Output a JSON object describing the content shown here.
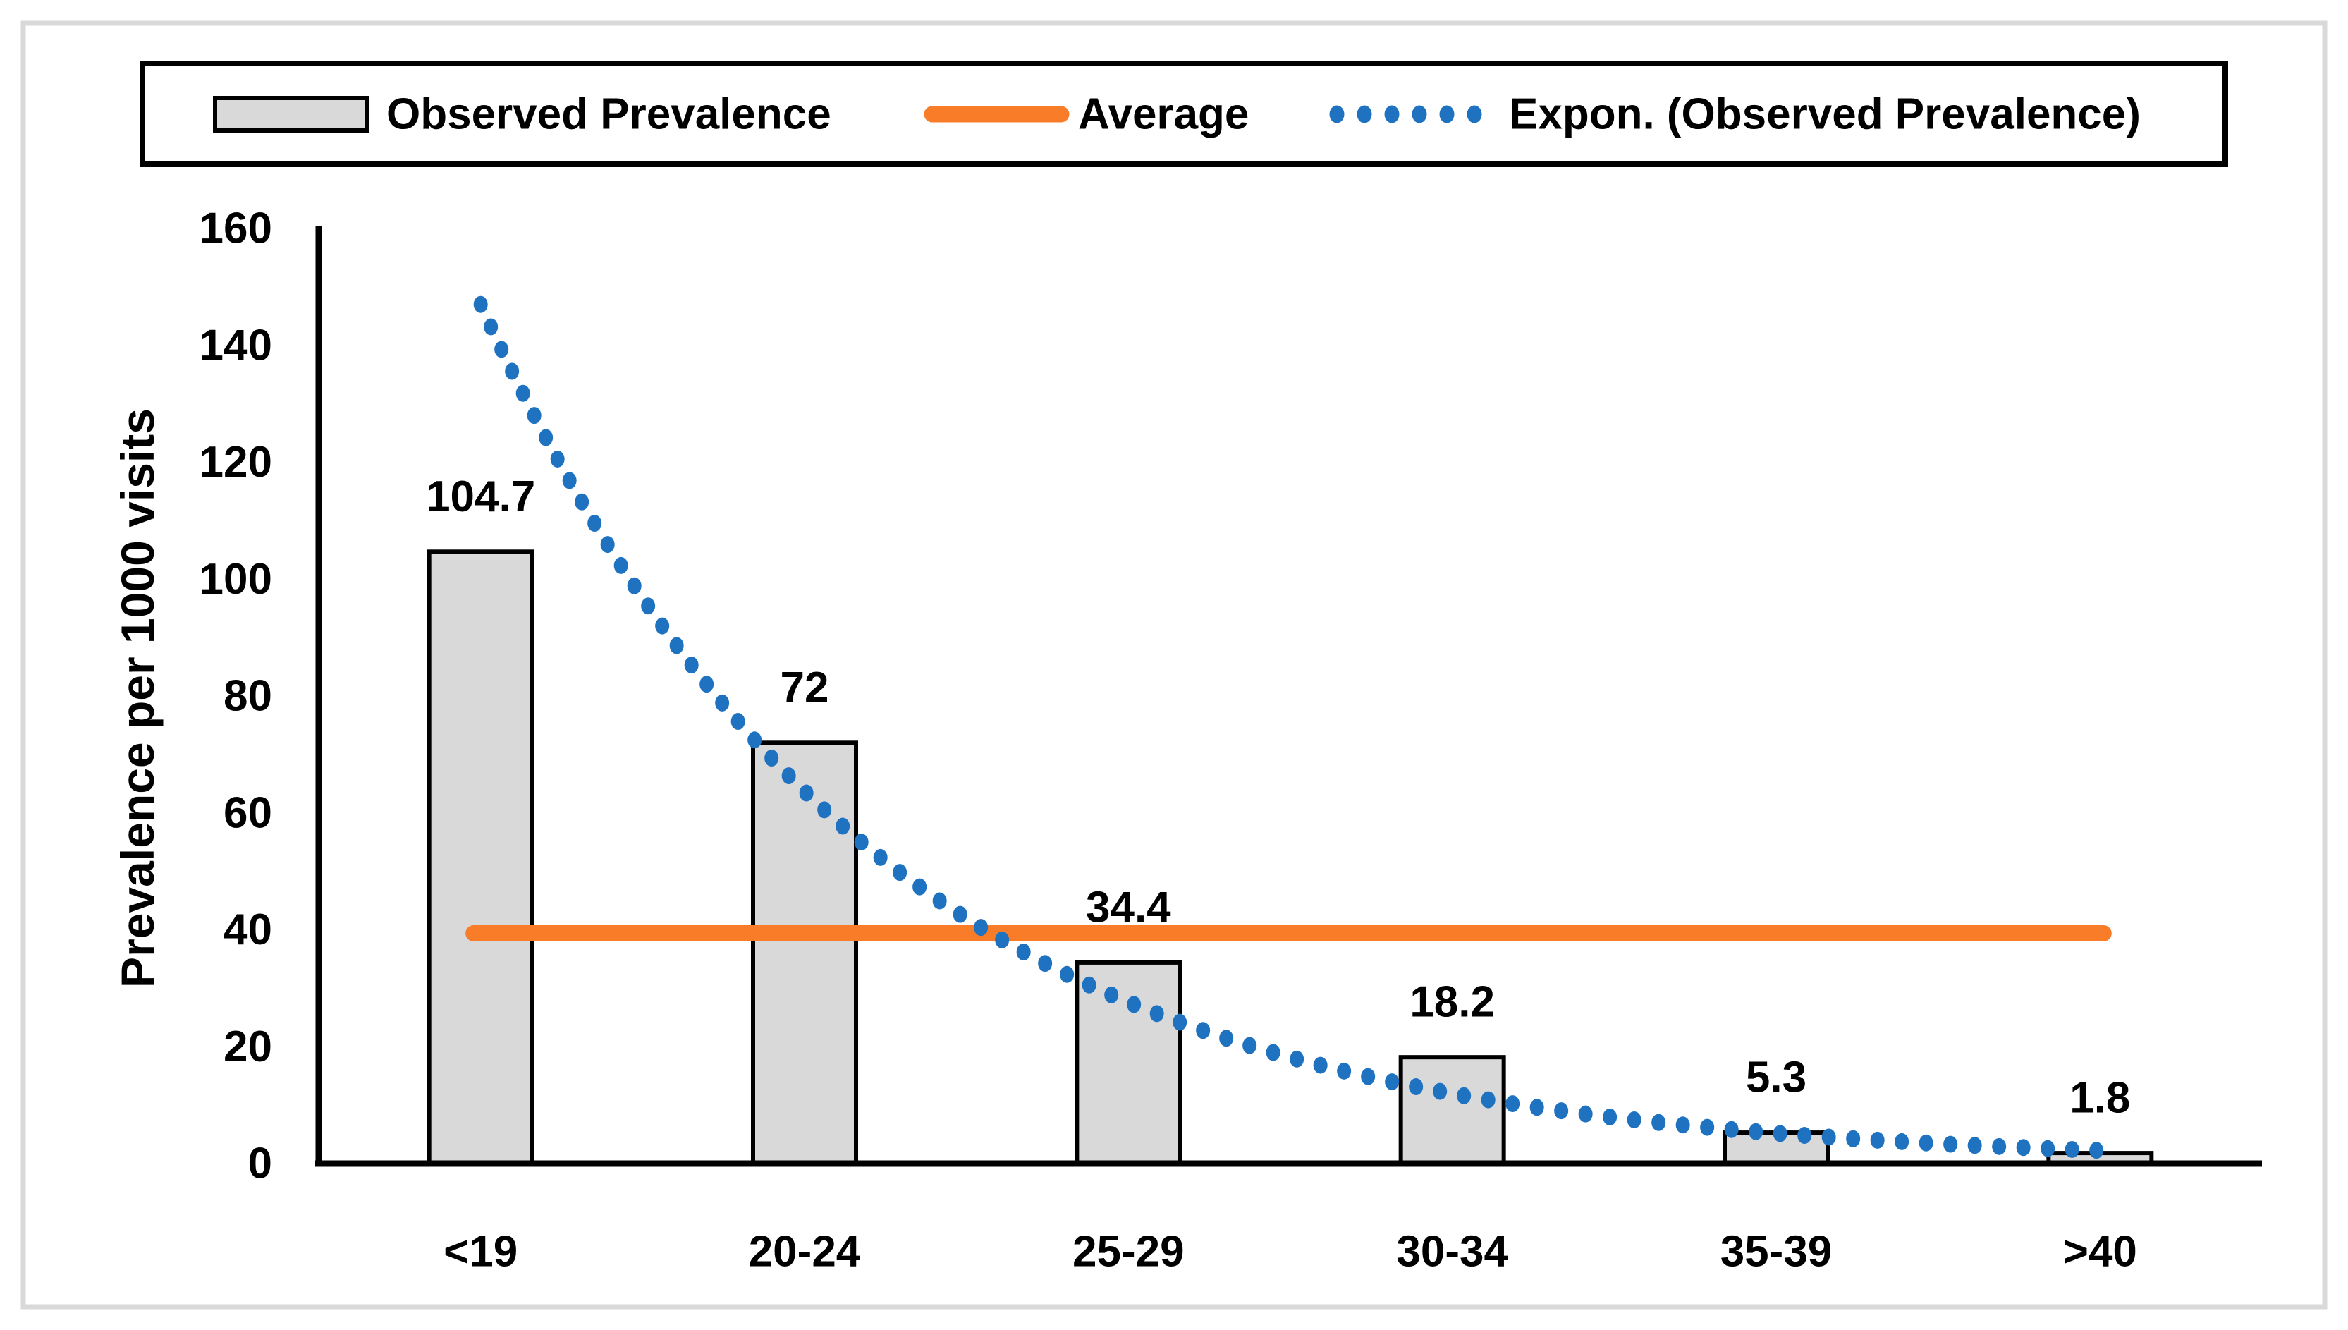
{
  "window": {
    "background_color": "#ffffff",
    "frame_color": "#d9d9d9"
  },
  "legend": {
    "items": [
      {
        "label": "Observed Prevalence",
        "swatch": "gray-bar-swatch",
        "color": "#d9d9d9",
        "border_color": "#000000"
      },
      {
        "label": "Average",
        "swatch": "orange-line-swatch",
        "color": "#f97d28"
      },
      {
        "label": "Expon. (Observed Prevalence)",
        "swatch": "blue-dotted-line-swatch",
        "color": "#1f72c0"
      }
    ]
  },
  "chart_data": {
    "type": "bar",
    "title": "",
    "xlabel": "",
    "ylabel": "Prevalence per 1000 visits",
    "categories": [
      "<19",
      "20-24",
      "25-29",
      "30-34",
      "35-39",
      ">40"
    ],
    "series": [
      {
        "name": "Observed Prevalence",
        "values": [
          104.7,
          72,
          34.4,
          18.2,
          5.3,
          1.8
        ]
      }
    ],
    "data_labels": [
      "104.7",
      "72",
      "34.4",
      "18.2",
      "5.3",
      "1.8"
    ],
    "average_line": {
      "name": "Average",
      "value": 39.4,
      "color": "#f97d28"
    },
    "trendline": {
      "name": "Expon. (Observed Prevalence)",
      "type": "exponential",
      "start_value": 147,
      "end_value": 2.2,
      "color": "#1f72c0"
    },
    "ylim": [
      0,
      160
    ],
    "ytick_step": 20,
    "yticks": [
      "0",
      "20",
      "40",
      "60",
      "80",
      "100",
      "120",
      "140",
      "160"
    ],
    "bar_fill": "#d9d9d9",
    "bar_border": "#000000",
    "axis_color": "#000000",
    "grid": false,
    "legend_position": "top"
  }
}
